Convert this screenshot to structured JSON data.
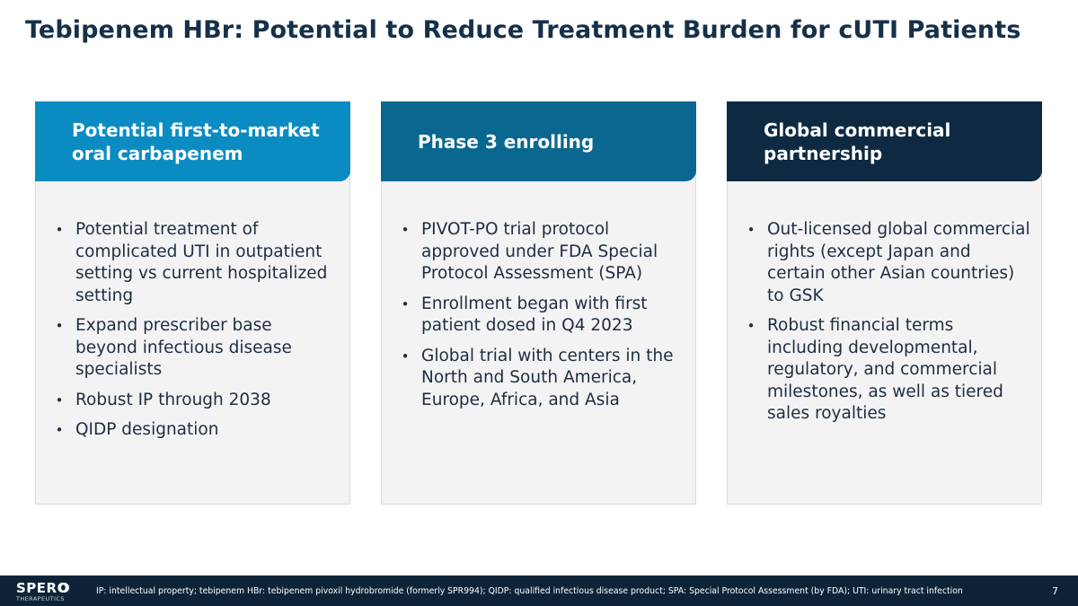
{
  "slide": {
    "title": "Tebipenem HBr: Potential to Reduce Treatment Burden for cUTI Patients",
    "page_number": "7"
  },
  "colors": {
    "card1_header": "#0a8cc2",
    "card2_header": "#0a6890",
    "card3_header": "#0d2a42",
    "footer_bg": "#0d2438"
  },
  "cards": [
    {
      "heading_lines": [
        "Potential first-to-market",
        "oral carbapenem"
      ],
      "bullets": [
        "Potential treatment of complicated UTI in outpatient setting vs current hospitalized setting",
        "Expand prescriber base beyond infectious disease specialists",
        "Robust IP through 2038",
        "QIDP designation"
      ]
    },
    {
      "heading_lines": [
        "Phase 3 enrolling"
      ],
      "bullets": [
        "PIVOT-PO trial protocol approved under FDA Special Protocol Assessment (SPA)",
        "Enrollment began with first patient dosed in Q4 2023",
        "Global trial with centers in the North and South America, Europe, Africa, and Asia"
      ]
    },
    {
      "heading_lines": [
        "Global commercial",
        "partnership"
      ],
      "bullets": [
        "Out-licensed global commercial rights (except Japan and certain other Asian countries) to GSK",
        "Robust financial terms including developmental, regulatory, and commercial milestones, as well as tiered sales royalties"
      ]
    }
  ],
  "bullet_glyph": "•",
  "footer": {
    "logo_text": "SPERO",
    "logo_subtext": "THERAPEUTICS",
    "footnote": "IP: intellectual property; tebipenem HBr: tebipenem pivoxil hydrobromide (formerly SPR994); QIDP: qualified infectious disease product; SPA: Special Protocol Assessment (by FDA); UTI: urinary tract infection"
  }
}
